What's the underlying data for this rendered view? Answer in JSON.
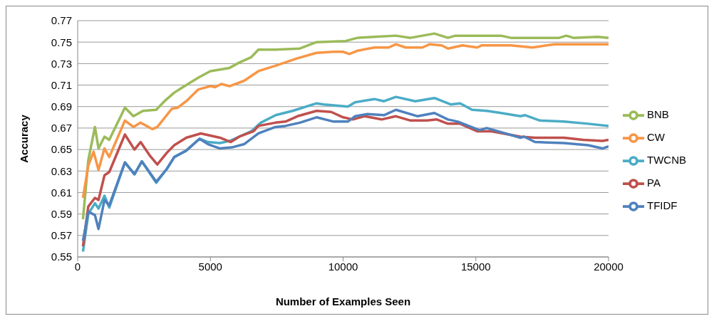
{
  "chart_data": {
    "type": "line",
    "xlabel": "Number of Examples Seen",
    "ylabel": "Accuracy",
    "xlim": [
      0,
      20000
    ],
    "ylim": [
      0.55,
      0.77
    ],
    "xticks": [
      0,
      5000,
      10000,
      15000,
      20000
    ],
    "yticks": [
      0.55,
      0.57,
      0.59,
      0.61,
      0.63,
      0.65,
      0.67,
      0.69,
      0.71,
      0.73,
      0.75,
      0.77
    ],
    "grid": "y",
    "legend": "right",
    "marker": "none",
    "line_style": "solid",
    "series": [
      {
        "name": "BNB",
        "color": "#9bbb59",
        "x": [
          200,
          400,
          650,
          785,
          1010,
          1190,
          1780,
          2100,
          2460,
          2960,
          3270,
          3640,
          4090,
          4550,
          5000,
          5720,
          6090,
          6540,
          6810,
          7450,
          8370,
          9000,
          10090,
          10540,
          11180,
          11990,
          12540,
          13440,
          13950,
          14230,
          15950,
          16320,
          18140,
          18410,
          18680,
          19590,
          20000
        ],
        "values": [
          0.585,
          0.64,
          0.671,
          0.651,
          0.662,
          0.659,
          0.689,
          0.681,
          0.686,
          0.687,
          0.695,
          0.703,
          0.71,
          0.717,
          0.723,
          0.726,
          0.731,
          0.736,
          0.743,
          0.743,
          0.744,
          0.75,
          0.751,
          0.754,
          0.755,
          0.756,
          0.754,
          0.758,
          0.754,
          0.756,
          0.756,
          0.754,
          0.754,
          0.756,
          0.754,
          0.755,
          0.754
        ]
      },
      {
        "name": "CW",
        "color": "#f79646",
        "x": [
          200,
          400,
          600,
          785,
          1010,
          1190,
          1780,
          2100,
          2370,
          2820,
          3000,
          3550,
          3770,
          4090,
          4550,
          5000,
          5180,
          5410,
          5720,
          6270,
          6810,
          7450,
          8280,
          9000,
          9640,
          10000,
          10230,
          10540,
          11180,
          11720,
          11990,
          12350,
          12990,
          13260,
          13715,
          13950,
          14500,
          15050,
          15230,
          16320,
          17140,
          17950,
          20000
        ],
        "values": [
          0.605,
          0.635,
          0.648,
          0.631,
          0.651,
          0.643,
          0.677,
          0.671,
          0.675,
          0.669,
          0.671,
          0.688,
          0.689,
          0.695,
          0.706,
          0.709,
          0.708,
          0.711,
          0.709,
          0.714,
          0.723,
          0.728,
          0.735,
          0.74,
          0.741,
          0.741,
          0.739,
          0.742,
          0.745,
          0.745,
          0.748,
          0.745,
          0.745,
          0.748,
          0.747,
          0.744,
          0.747,
          0.745,
          0.747,
          0.747,
          0.745,
          0.748,
          0.748
        ]
      },
      {
        "name": "TWCNB",
        "color": "#4bacc6",
        "x": [
          200,
          400,
          650,
          785,
          1010,
          1190,
          1780,
          2140,
          2420,
          2960,
          3360,
          3640,
          4090,
          4590,
          4910,
          5360,
          5720,
          6090,
          6540,
          6900,
          7460,
          8100,
          9000,
          9270,
          10180,
          10450,
          11180,
          11540,
          11990,
          12720,
          13440,
          14050,
          14410,
          14860,
          15410,
          15950,
          16680,
          16860,
          17410,
          18320,
          19230,
          20000
        ],
        "values": [
          0.555,
          0.59,
          0.6,
          0.595,
          0.607,
          0.596,
          0.638,
          0.627,
          0.639,
          0.619,
          0.632,
          0.643,
          0.649,
          0.66,
          0.657,
          0.656,
          0.658,
          0.662,
          0.667,
          0.675,
          0.682,
          0.686,
          0.693,
          0.692,
          0.69,
          0.694,
          0.697,
          0.695,
          0.699,
          0.695,
          0.698,
          0.692,
          0.693,
          0.687,
          0.686,
          0.684,
          0.681,
          0.682,
          0.677,
          0.676,
          0.674,
          0.672
        ]
      },
      {
        "name": "PA",
        "color": "#c0504d",
        "x": [
          200,
          400,
          650,
          785,
          1010,
          1190,
          1780,
          2140,
          2370,
          2730,
          3000,
          3360,
          3640,
          4090,
          4640,
          5360,
          5770,
          6090,
          6630,
          6810,
          7450,
          7830,
          8280,
          9000,
          9550,
          10000,
          10360,
          10810,
          11450,
          11990,
          12540,
          13170,
          13530,
          13950,
          14410,
          15050,
          15590,
          16680,
          17230,
          18320,
          19050,
          19770,
          20000
        ],
        "values": [
          0.56,
          0.597,
          0.605,
          0.603,
          0.626,
          0.629,
          0.664,
          0.65,
          0.657,
          0.644,
          0.636,
          0.647,
          0.654,
          0.661,
          0.665,
          0.661,
          0.657,
          0.662,
          0.667,
          0.672,
          0.675,
          0.676,
          0.681,
          0.686,
          0.685,
          0.68,
          0.678,
          0.681,
          0.678,
          0.681,
          0.677,
          0.677,
          0.678,
          0.674,
          0.674,
          0.667,
          0.667,
          0.662,
          0.661,
          0.661,
          0.659,
          0.658,
          0.659
        ]
      },
      {
        "name": "TFIDF",
        "color": "#4f81bd",
        "x": [
          200,
          400,
          650,
          785,
          1010,
          1190,
          1780,
          2140,
          2420,
          2960,
          3360,
          3640,
          4090,
          4590,
          4910,
          5360,
          5810,
          6270,
          6810,
          7450,
          7830,
          8370,
          9000,
          9640,
          10180,
          10450,
          10910,
          11540,
          11990,
          12810,
          13440,
          13950,
          14320,
          15140,
          15410,
          16680,
          16820,
          17230,
          18320,
          19230,
          19770,
          20000
        ],
        "values": [
          0.565,
          0.592,
          0.589,
          0.576,
          0.603,
          0.598,
          0.638,
          0.627,
          0.639,
          0.62,
          0.632,
          0.643,
          0.649,
          0.66,
          0.655,
          0.651,
          0.652,
          0.655,
          0.665,
          0.671,
          0.672,
          0.675,
          0.68,
          0.676,
          0.676,
          0.681,
          0.683,
          0.682,
          0.687,
          0.681,
          0.684,
          0.678,
          0.676,
          0.668,
          0.67,
          0.661,
          0.662,
          0.657,
          0.656,
          0.654,
          0.651,
          0.653
        ]
      }
    ]
  }
}
